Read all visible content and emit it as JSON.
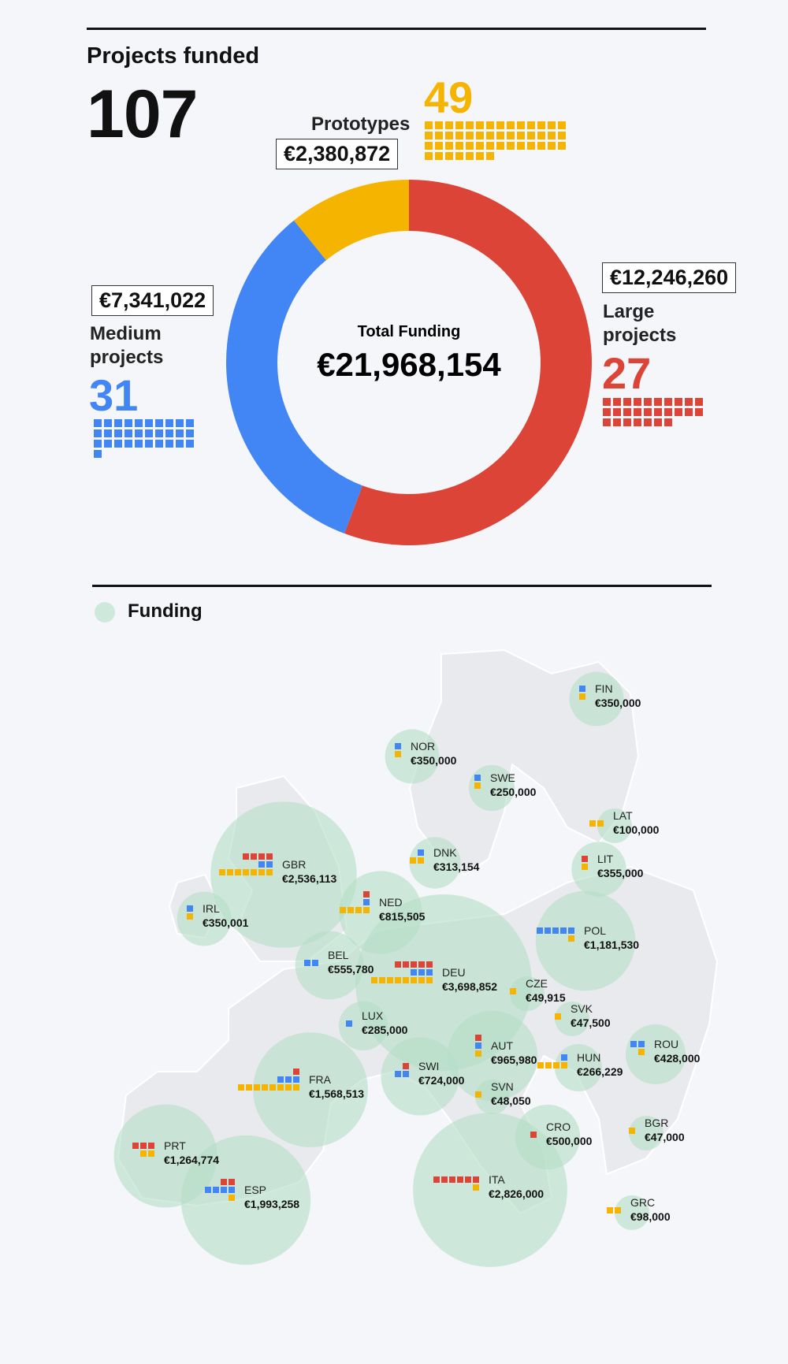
{
  "header": {
    "projects_label": "Projects funded",
    "projects_total": "107"
  },
  "categories": {
    "prototypes": {
      "label": "Prototypes",
      "count": "49",
      "amount": "€2,380,872",
      "color": "#f4b400"
    },
    "medium": {
      "label_line1": "Medium",
      "label_line2": "projects",
      "count": "31",
      "amount": "€7,341,022",
      "color": "#4285f4"
    },
    "large": {
      "label_line1": "Large",
      "label_line2": "projects",
      "count": "27",
      "amount": "€12,246,260",
      "color": "#db4437"
    }
  },
  "donut": {
    "center_label": "Total Funding",
    "center_value": "€21,968,154"
  },
  "map": {
    "legend_label": "Funding",
    "bubble_color": "#b5dfc6"
  },
  "chart_data": [
    {
      "type": "pie",
      "title": "Total Funding",
      "categories": [
        "Large projects",
        "Medium projects",
        "Prototypes"
      ],
      "values": [
        12246260,
        7341022,
        2380872
      ],
      "counts": [
        27,
        31,
        49
      ],
      "colors": [
        "#db4437",
        "#4285f4",
        "#f4b400"
      ]
    },
    {
      "type": "scatter",
      "title": "Funding",
      "countries": [
        {
          "code": "FIN",
          "amount": "€350,000",
          "value": 350000,
          "large": 0,
          "medium": 1,
          "prototypes": 1
        },
        {
          "code": "NOR",
          "amount": "€350,000",
          "value": 350000,
          "large": 0,
          "medium": 1,
          "prototypes": 1
        },
        {
          "code": "SWE",
          "amount": "€250,000",
          "value": 250000,
          "large": 0,
          "medium": 1,
          "prototypes": 1
        },
        {
          "code": "LAT",
          "amount": "€100,000",
          "value": 100000,
          "large": 0,
          "medium": 0,
          "prototypes": 2
        },
        {
          "code": "DNK",
          "amount": "€313,154",
          "value": 313154,
          "large": 0,
          "medium": 1,
          "prototypes": 2
        },
        {
          "code": "LIT",
          "amount": "€355,000",
          "value": 355000,
          "large": 1,
          "medium": 0,
          "prototypes": 1
        },
        {
          "code": "GBR",
          "amount": "€2,536,113",
          "value": 2536113,
          "large": 4,
          "medium": 2,
          "prototypes": 7
        },
        {
          "code": "IRL",
          "amount": "€350,001",
          "value": 350001,
          "large": 0,
          "medium": 1,
          "prototypes": 1
        },
        {
          "code": "NED",
          "amount": "€815,505",
          "value": 815505,
          "large": 1,
          "medium": 1,
          "prototypes": 4
        },
        {
          "code": "POL",
          "amount": "€1,181,530",
          "value": 1181530,
          "large": 0,
          "medium": 5,
          "prototypes": 1
        },
        {
          "code": "BEL",
          "amount": "€555,780",
          "value": 555780,
          "large": 0,
          "medium": 2,
          "prototypes": 0
        },
        {
          "code": "DEU",
          "amount": "€3,698,852",
          "value": 3698852,
          "large": 5,
          "medium": 3,
          "prototypes": 8
        },
        {
          "code": "CZE",
          "amount": "€49,915",
          "value": 49915,
          "large": 0,
          "medium": 0,
          "prototypes": 1
        },
        {
          "code": "LUX",
          "amount": "€285,000",
          "value": 285000,
          "large": 0,
          "medium": 1,
          "prototypes": 0
        },
        {
          "code": "SVK",
          "amount": "€47,500",
          "value": 47500,
          "large": 0,
          "medium": 0,
          "prototypes": 1
        },
        {
          "code": "AUT",
          "amount": "€965,980",
          "value": 965980,
          "large": 1,
          "medium": 1,
          "prototypes": 1
        },
        {
          "code": "ROU",
          "amount": "€428,000",
          "value": 428000,
          "large": 0,
          "medium": 2,
          "prototypes": 1
        },
        {
          "code": "HUN",
          "amount": "€266,229",
          "value": 266229,
          "large": 0,
          "medium": 1,
          "prototypes": 4
        },
        {
          "code": "SWI",
          "amount": "€724,000",
          "value": 724000,
          "large": 1,
          "medium": 2,
          "prototypes": 0
        },
        {
          "code": "FRA",
          "amount": "€1,568,513",
          "value": 1568513,
          "large": 1,
          "medium": 3,
          "prototypes": 8
        },
        {
          "code": "SVN",
          "amount": "€48,050",
          "value": 48050,
          "large": 0,
          "medium": 0,
          "prototypes": 1
        },
        {
          "code": "CRO",
          "amount": "€500,000",
          "value": 500000,
          "large": 1,
          "medium": 0,
          "prototypes": 0
        },
        {
          "code": "BGR",
          "amount": "€47,000",
          "value": 47000,
          "large": 0,
          "medium": 0,
          "prototypes": 1
        },
        {
          "code": "PRT",
          "amount": "€1,264,774",
          "value": 1264774,
          "large": 3,
          "medium": 0,
          "prototypes": 2
        },
        {
          "code": "ESP",
          "amount": "€1,993,258",
          "value": 1993258,
          "large": 2,
          "medium": 4,
          "prototypes": 1
        },
        {
          "code": "ITA",
          "amount": "€2,826,000",
          "value": 2826000,
          "large": 6,
          "medium": 0,
          "prototypes": 1
        },
        {
          "code": "GRC",
          "amount": "€98,000",
          "value": 98000,
          "large": 0,
          "medium": 0,
          "prototypes": 2
        }
      ]
    }
  ]
}
